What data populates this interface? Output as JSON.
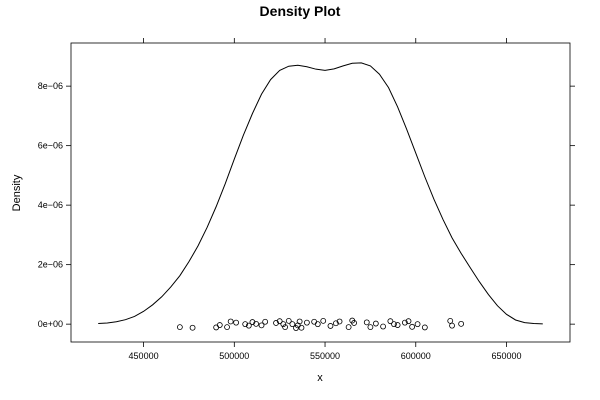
{
  "chart_data": {
    "type": "line",
    "title": "Density Plot",
    "xlabel": "x",
    "ylabel": "Density",
    "xlim": [
      410000,
      685000
    ],
    "ylim": [
      -6e-07,
      9.45e-06
    ],
    "x_ticks": [
      {
        "value": 450000,
        "label": "450000"
      },
      {
        "value": 500000,
        "label": "500000"
      },
      {
        "value": 550000,
        "label": "550000"
      },
      {
        "value": 600000,
        "label": "600000"
      },
      {
        "value": 650000,
        "label": "650000"
      }
    ],
    "y_ticks": [
      {
        "value": 0,
        "label": "0e+00"
      },
      {
        "value": 2e-06,
        "label": "2e−06"
      },
      {
        "value": 4e-06,
        "label": "4e−06"
      },
      {
        "value": 6e-06,
        "label": "6e−06"
      },
      {
        "value": 8e-06,
        "label": "8e−06"
      }
    ],
    "grid": false,
    "line_color": "#000000",
    "series": [
      {
        "x": [
          425000,
          430000,
          435000,
          440000,
          445000,
          450000,
          455000,
          460000,
          465000,
          470000,
          475000,
          480000,
          485000,
          490000,
          495000,
          500000,
          505000,
          510000,
          515000,
          520000,
          525000,
          530000,
          535000,
          540000,
          545000,
          550000,
          555000,
          560000,
          565000,
          570000,
          575000,
          580000,
          585000,
          590000,
          595000,
          600000,
          605000,
          610000,
          615000,
          620000,
          625000,
          630000,
          635000,
          640000,
          645000,
          650000,
          655000,
          660000,
          665000,
          670000
        ],
        "y": [
          2e-08,
          4e-08,
          8e-08,
          1.5e-07,
          2.6e-07,
          4.3e-07,
          6.5e-07,
          9.2e-07,
          1.25e-06,
          1.63e-06,
          2.1e-06,
          2.63e-06,
          3.25e-06,
          3.95e-06,
          4.72e-06,
          5.55e-06,
          6.35e-06,
          7.08e-06,
          7.73e-06,
          8.22e-06,
          8.53e-06,
          8.67e-06,
          8.7e-06,
          8.65e-06,
          8.57e-06,
          8.53e-06,
          8.58e-06,
          8.68e-06,
          8.77e-06,
          8.78e-06,
          8.68e-06,
          8.4e-06,
          7.95e-06,
          7.3e-06,
          6.55e-06,
          5.75e-06,
          4.95e-06,
          4.2e-06,
          3.52e-06,
          2.9e-06,
          2.38e-06,
          1.9e-06,
          1.43e-06,
          1e-06,
          6.2e-07,
          3.3e-07,
          1.4e-07,
          5e-08,
          2e-08,
          1e-08
        ]
      }
    ],
    "rug": {
      "marker": "open-circle",
      "x": [
        470000,
        477000,
        490000,
        492000,
        496000,
        498000,
        501000,
        506000,
        508000,
        510000,
        512000,
        515000,
        517000,
        523000,
        525000,
        527000,
        528000,
        530000,
        532000,
        534000,
        535000,
        536000,
        537000,
        540000,
        544000,
        546000,
        549000,
        553000,
        556000,
        558000,
        563000,
        565000,
        566000,
        573000,
        575000,
        578000,
        582000,
        586000,
        588000,
        590000,
        594000,
        596000,
        598000,
        601000,
        605000,
        619000,
        620000,
        625000
      ],
      "y": [
        -1e-07,
        -1.2e-07,
        -1.1e-07,
        -3e-08,
        -1e-07,
        9e-08,
        5e-08,
        0,
        -5e-08,
        7e-08,
        1e-08,
        -4e-08,
        8e-08,
        4e-08,
        1e-07,
        0,
        -1e-07,
        1.1e-07,
        0,
        -1.3e-07,
        -4e-08,
        9e-08,
        -1.2e-07,
        5e-08,
        8e-08,
        0,
        1.1e-07,
        -6e-08,
        3e-08,
        9e-08,
        -1e-07,
        1.2e-07,
        4e-08,
        6e-08,
        -1e-07,
        2e-08,
        -8e-08,
        1e-07,
        0,
        -3e-08,
        5e-08,
        1e-07,
        -9e-08,
        0,
        -1.1e-07,
        1.1e-07,
        -5e-08,
        1e-08
      ]
    }
  }
}
